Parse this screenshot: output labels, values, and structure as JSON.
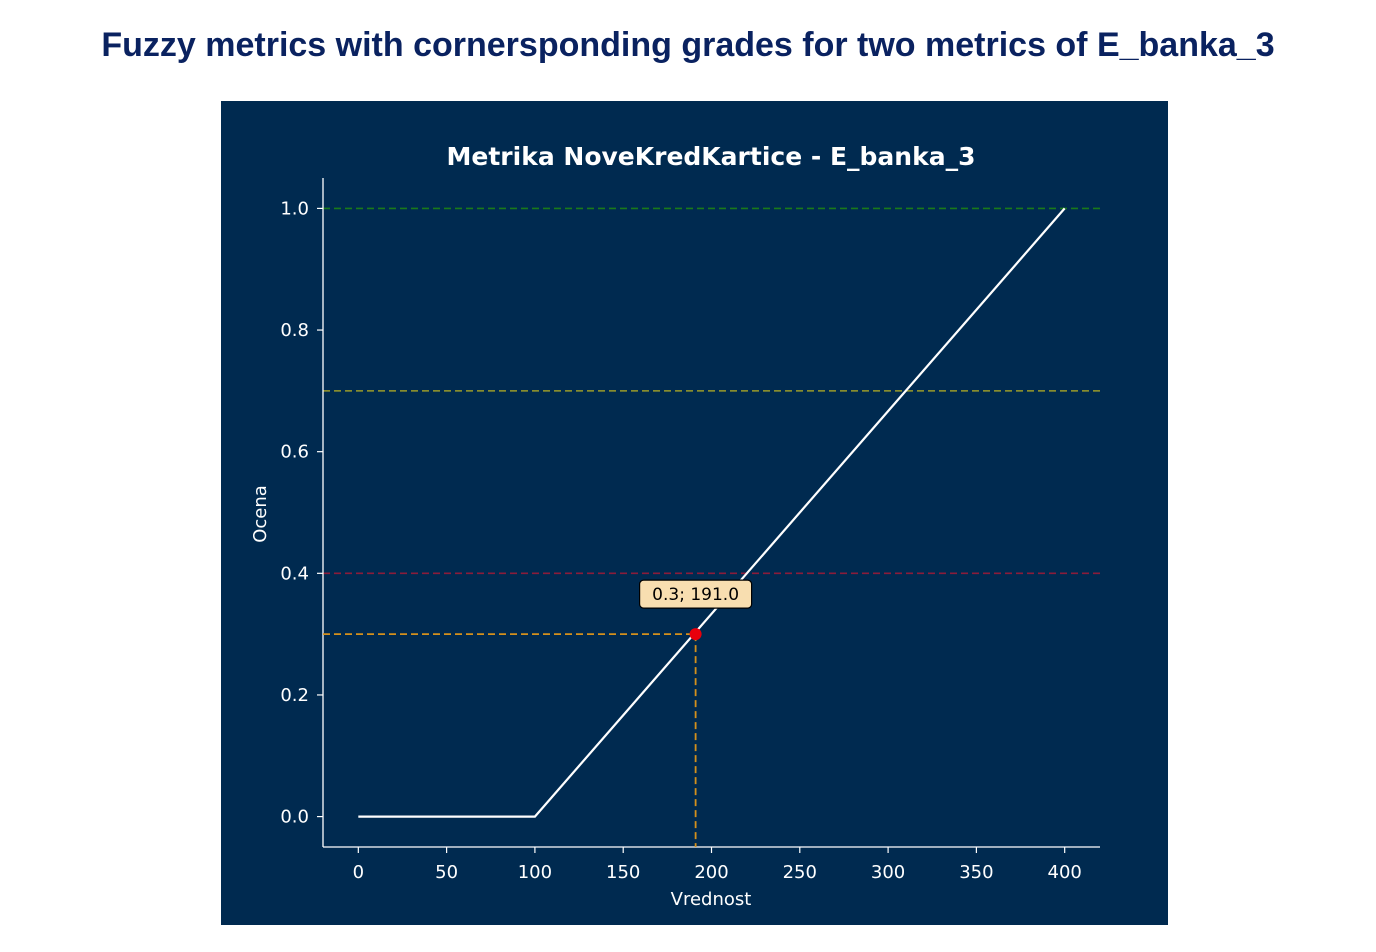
{
  "page": {
    "title": "Fuzzy metrics with cornersponding grades for two metrics of E_banka_3"
  },
  "colors": {
    "slide_title": "#0a2260",
    "panel_background": "#002a50",
    "curve": "#ffffff",
    "threshold_high": "#1a7a1a",
    "threshold_mid": "#9a9a2a",
    "threshold_low": "#8a1c3a",
    "guide": "#d4901c",
    "point": "#e8000b",
    "annotation_fill": "#f8deb0"
  },
  "chart_data": {
    "type": "line",
    "title": "Metrika NoveKredKartice - E_banka_3",
    "xlabel": "Vrednost",
    "ylabel": "Ocena",
    "xlim": [
      -20,
      420
    ],
    "ylim": [
      -0.05,
      1.05
    ],
    "xticks": [
      0,
      50,
      100,
      150,
      200,
      250,
      300,
      350,
      400
    ],
    "yticks": [
      0.0,
      0.2,
      0.4,
      0.6,
      0.8,
      1.0
    ],
    "xtick_labels": [
      "0",
      "50",
      "100",
      "150",
      "200",
      "250",
      "300",
      "350",
      "400"
    ],
    "ytick_labels": [
      "0.0",
      "0.2",
      "0.4",
      "0.6",
      "0.8",
      "1.0"
    ],
    "grid": false,
    "series": [
      {
        "x": [
          0,
          100,
          400
        ],
        "y": [
          0.0,
          0.0,
          1.0
        ]
      }
    ],
    "threshold_lines": [
      {
        "y": 1.0,
        "color_key": "threshold_high"
      },
      {
        "y": 0.7,
        "color_key": "threshold_mid"
      },
      {
        "y": 0.4,
        "color_key": "threshold_low"
      }
    ],
    "highlight_point": {
      "x": 191.0,
      "y": 0.3,
      "label": "0.3; 191.0"
    }
  }
}
